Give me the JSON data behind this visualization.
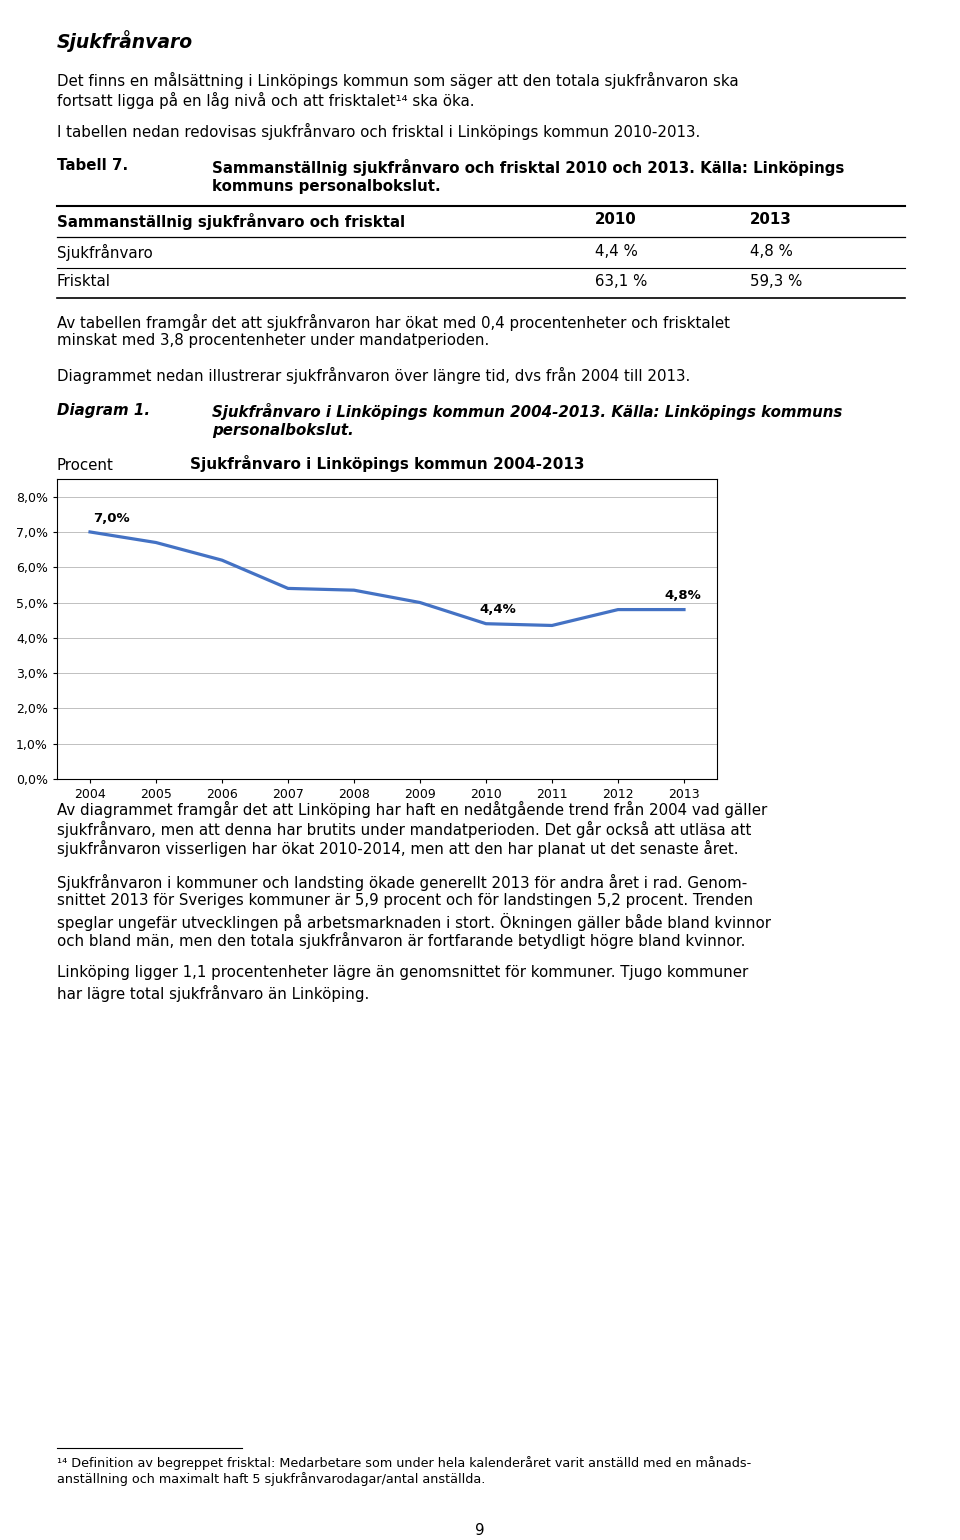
{
  "page_title": "Sjukfrånvaro",
  "para1_lines": [
    "Det finns en målsättning i Linköpings kommun som säger att den totala sjukfrånvaron ska",
    "fortsatt ligga på en låg nivå och att frisktalet¹⁴ ska öka."
  ],
  "para2": "I tabellen nedan redovisas sjukfrånvaro och frisktal i Linköpings kommun 2010-2013.",
  "tabell_label": "Tabell 7.",
  "tabell_text_line1": "Sammanställnig sjukfrånvaro och frisktal 2010 och 2013. Källa: Linköpings",
  "tabell_text_line2": "kommuns personalbokslut.",
  "table_header": [
    "Sammanställnig sjukfrånvaro och frisktal",
    "2010",
    "2013"
  ],
  "table_row1": [
    "Sjukfrånvaro",
    "4,4 %",
    "4,8 %"
  ],
  "table_row2": [
    "Frisktal",
    "63,1 %",
    "59,3 %"
  ],
  "para3_lines": [
    "Av tabellen framgår det att sjukfrånvaron har ökat med 0,4 procentenheter och frisktalet",
    "minskat med 3,8 procentenheter under mandatperioden."
  ],
  "para4": "Diagrammet nedan illustrerar sjukfrånvaron över längre tid, dvs från 2004 till 2013.",
  "diagram_label": "Diagram 1.",
  "diagram_text_line1": "Sjukfrånvaro i Linköpings kommun 2004-2013. Källa: Linköpings kommuns",
  "diagram_text_line2": "personalbokslut.",
  "chart_title": "Sjukfrånvaro i Linköpings kommun 2004-2013",
  "chart_ylabel": "Procent",
  "chart_years": [
    2004,
    2005,
    2006,
    2007,
    2008,
    2009,
    2010,
    2011,
    2012,
    2013
  ],
  "chart_values": [
    7.0,
    6.7,
    6.2,
    5.4,
    5.35,
    5.0,
    4.4,
    4.35,
    4.8,
    4.8
  ],
  "chart_ylim": [
    0.0,
    8.5
  ],
  "chart_yticks": [
    0.0,
    1.0,
    2.0,
    3.0,
    4.0,
    5.0,
    6.0,
    7.0,
    8.0
  ],
  "chart_ytick_labels": [
    "0,0%",
    "1,0%",
    "2,0%",
    "3,0%",
    "4,0%",
    "5,0%",
    "6,0%",
    "7,0%",
    "8,0%"
  ],
  "chart_ann_2004": {
    "year": 2004,
    "value": 7.0,
    "label": "7,0%"
  },
  "chart_ann_2010": {
    "year": 2010,
    "value": 4.4,
    "label": "4,4%"
  },
  "chart_ann_2013": {
    "year": 2013,
    "value": 4.8,
    "label": "4,8%"
  },
  "line_color": "#4472C4",
  "para5_lines": [
    "Av diagrammet framgår det att Linköping har haft en nedåtgående trend från 2004 vad gäller",
    "sjukfrånvaro, men att denna har brutits under mandatperioden. Det går också att utläsa att",
    "sjukfrånvaron visserligen har ökat 2010-2014, men att den har planat ut det senaste året."
  ],
  "para6_lines": [
    "Sjukfrånvaron i kommuner och landsting ökade generellt 2013 för andra året i rad. Genom-",
    "snittet 2013 för Sveriges kommuner är 5,9 procent och för landstingen 5,2 procent. Trenden",
    "speglar ungefär utvecklingen på arbetsmarknaden i stort. Ökningen gäller både bland kvinnor",
    "och bland män, men den totala sjukfrånvaron är fortfarande betydligt högre bland kvinnor."
  ],
  "para7_lines": [
    "Linköping ligger 1,1 procentenheter lägre än genomsnittet för kommuner. Tjugo kommuner",
    "har lägre total sjukfrånvaro än Linköping."
  ],
  "footnote_line1": "¹⁴ Definition av begreppet frisktal: Medarbetare som under hela kalenderåret varit anställd med en månads-",
  "footnote_line2": "anställning och maximalt haft 5 sjukfrånvarodagar/antal anställda.",
  "page_number": "9",
  "bg_color": "#ffffff",
  "text_color": "#000000"
}
